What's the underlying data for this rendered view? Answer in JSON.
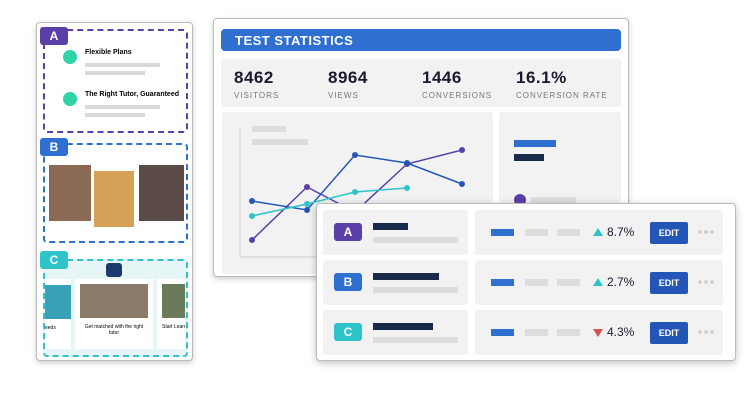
{
  "left_panel": {
    "sections": [
      {
        "badge": "A",
        "items": [
          {
            "title": "Flexible Plans"
          },
          {
            "title": "The Right Tutor, Guaranteed"
          }
        ]
      },
      {
        "badge": "B"
      },
      {
        "badge": "C",
        "cards": [
          "eeds",
          "Get matched with the right tutor",
          "Start Learn"
        ]
      }
    ]
  },
  "dashboard": {
    "title": "TEST STATISTICS",
    "stats": [
      {
        "value": "8462",
        "label": "VISITORS"
      },
      {
        "value": "8964",
        "label": "VIEWS"
      },
      {
        "value": "1446",
        "label": "CONVERSIONS"
      },
      {
        "value": "16.1%",
        "label": "CONVERSION RATE"
      }
    ]
  },
  "variants": [
    {
      "badge": "A",
      "change": "8.7%",
      "trend": "up",
      "action": "EDIT"
    },
    {
      "badge": "B",
      "change": "2.7%",
      "trend": "up",
      "action": "EDIT"
    },
    {
      "badge": "C",
      "change": "4.3%",
      "trend": "down",
      "action": "EDIT"
    }
  ]
}
